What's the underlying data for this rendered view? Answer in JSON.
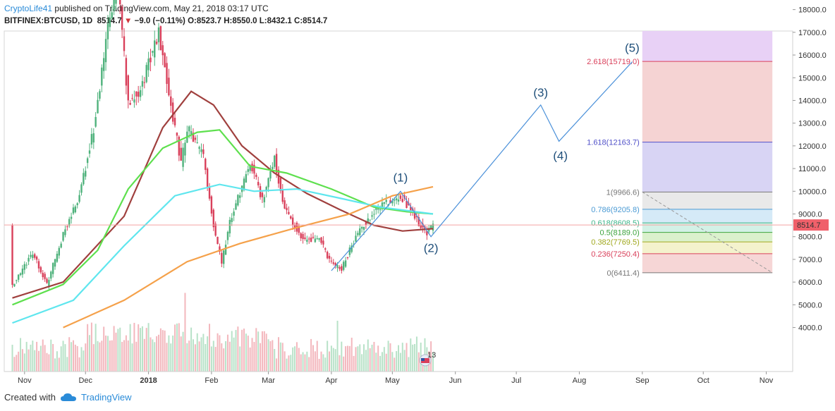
{
  "header": {
    "author": "CryptoLife41",
    "published_text": "published on TradingView.com, May 21, 2018 03:17 UTC",
    "symbol": "BITFINEX:BTCUSD, 1D",
    "last": "8514.7",
    "change": "−9.0 (−0.11%)",
    "open_label": "O:",
    "open": "8523.7",
    "high_label": "H:",
    "high": "8550.0",
    "low_label": "L:",
    "low": "8432.1",
    "close_label": "C:",
    "close": "8514.7"
  },
  "footer": {
    "created_with": "Created with",
    "brand": "TradingView"
  },
  "badge": {
    "count": "13"
  },
  "colors": {
    "up": "#4fb27c",
    "down": "#d9405b",
    "ma_brown": "#a0403e",
    "ma_green": "#5ee04e",
    "ma_cyan": "#5fe6ee",
    "ma_orange": "#f5a14a",
    "wave_line": "#4a90d9",
    "price_line": "#f4a3a3"
  },
  "chart_data": {
    "type": "candlestick",
    "price_axis": {
      "ticks": [
        "4000.0",
        "5000.0",
        "6000.0",
        "7000.0",
        "8000.0",
        "9000.0",
        "10000.0",
        "11000.0",
        "12000.0",
        "13000.0",
        "14000.0",
        "15000.0",
        "16000.0",
        "17000.0",
        "18000.0"
      ],
      "last_price": "8514.7"
    },
    "time_axis": {
      "ticks": [
        "Nov",
        "Dec",
        "2018",
        "Feb",
        "Mar",
        "Apr",
        "May",
        "Jun",
        "Jul",
        "Aug",
        "Sep",
        "Oct",
        "Nov"
      ]
    },
    "price_points": [
      [
        "2017-10-26",
        5800
      ],
      [
        "2017-11-05",
        7300
      ],
      [
        "2017-11-12",
        5900
      ],
      [
        "2017-11-20",
        8100
      ],
      [
        "2017-11-28",
        9800
      ],
      [
        "2017-12-06",
        13200
      ],
      [
        "2017-12-12",
        17200
      ],
      [
        "2017-12-17",
        19200
      ],
      [
        "2017-12-22",
        13800
      ],
      [
        "2017-12-28",
        14500
      ],
      [
        "2018-01-06",
        17000
      ],
      [
        "2018-01-12",
        13800
      ],
      [
        "2018-01-17",
        11200
      ],
      [
        "2018-01-20",
        12800
      ],
      [
        "2018-01-28",
        11500
      ],
      [
        "2018-02-02",
        8500
      ],
      [
        "2018-02-06",
        6900
      ],
      [
        "2018-02-10",
        8600
      ],
      [
        "2018-02-20",
        11300
      ],
      [
        "2018-02-26",
        9600
      ],
      [
        "2018-03-04",
        11500
      ],
      [
        "2018-03-07",
        9900
      ],
      [
        "2018-03-10",
        9100
      ],
      [
        "2018-03-18",
        7900
      ],
      [
        "2018-03-26",
        7900
      ],
      [
        "2018-04-01",
        6800
      ],
      [
        "2018-04-06",
        6600
      ],
      [
        "2018-04-13",
        8000
      ],
      [
        "2018-04-20",
        8900
      ],
      [
        "2018-04-24",
        9300
      ],
      [
        "2018-05-05",
        9800
      ],
      [
        "2018-05-09",
        9300
      ],
      [
        "2018-05-14",
        8600
      ],
      [
        "2018-05-18",
        8200
      ],
      [
        "2018-05-21",
        8514.7
      ]
    ],
    "moving_averages": [
      {
        "color": "#a0403e",
        "points": [
          [
            "2017-10-26",
            5300
          ],
          [
            "2017-11-20",
            6000
          ],
          [
            "2017-12-20",
            8900
          ],
          [
            "2018-01-08",
            12800
          ],
          [
            "2018-01-22",
            14400
          ],
          [
            "2018-02-02",
            13800
          ],
          [
            "2018-02-16",
            12000
          ],
          [
            "2018-03-04",
            10800
          ],
          [
            "2018-03-20",
            9900
          ],
          [
            "2018-04-05",
            9200
          ],
          [
            "2018-04-22",
            8500
          ],
          [
            "2018-05-06",
            8250
          ],
          [
            "2018-05-21",
            8350
          ]
        ]
      },
      {
        "color": "#5ee04e",
        "points": [
          [
            "2017-10-26",
            5000
          ],
          [
            "2017-11-20",
            5900
          ],
          [
            "2017-12-07",
            7400
          ],
          [
            "2017-12-22",
            10100
          ],
          [
            "2018-01-08",
            11900
          ],
          [
            "2018-01-25",
            12600
          ],
          [
            "2018-02-05",
            12700
          ],
          [
            "2018-02-20",
            11100
          ],
          [
            "2018-03-10",
            10800
          ],
          [
            "2018-04-01",
            10100
          ],
          [
            "2018-04-22",
            9300
          ],
          [
            "2018-05-08",
            9100
          ],
          [
            "2018-05-21",
            9000
          ]
        ]
      },
      {
        "color": "#5fe6ee",
        "points": [
          [
            "2017-10-26",
            4200
          ],
          [
            "2017-11-25",
            5200
          ],
          [
            "2017-12-20",
            7600
          ],
          [
            "2018-01-14",
            9800
          ],
          [
            "2018-02-05",
            10300
          ],
          [
            "2018-02-22",
            10000
          ],
          [
            "2018-03-15",
            10100
          ],
          [
            "2018-04-05",
            9700
          ],
          [
            "2018-04-25",
            9300
          ],
          [
            "2018-05-21",
            9000
          ]
        ]
      },
      {
        "color": "#f5a14a",
        "points": [
          [
            "2017-11-20",
            4000
          ],
          [
            "2017-12-20",
            5200
          ],
          [
            "2018-01-20",
            6900
          ],
          [
            "2018-02-15",
            7700
          ],
          [
            "2018-03-15",
            8400
          ],
          [
            "2018-04-10",
            9000
          ],
          [
            "2018-05-01",
            9800
          ],
          [
            "2018-05-21",
            10200
          ]
        ]
      }
    ],
    "elliott_waves": [
      {
        "label": "(1)",
        "date": "2018-05-05",
        "price": 10000
      },
      {
        "label": "(2)",
        "date": "2018-05-20",
        "price": 8000
      },
      {
        "label": "(3)",
        "date": "2018-07-13",
        "price": 13800
      },
      {
        "label": "(4)",
        "date": "2018-07-22",
        "price": 12200
      },
      {
        "label": "(5)",
        "date": "2018-08-27",
        "price": 15700
      }
    ],
    "wave_start": {
      "date": "2018-04-01",
      "price": 6500
    },
    "fibonacci": {
      "levels": [
        {
          "label": "2.618(15719.0)",
          "value": 15719.0,
          "color": "#d9405b"
        },
        {
          "label": "1.618(12163.7)",
          "value": 12163.7,
          "color": "#5050c8"
        },
        {
          "label": "1(9966.6)",
          "value": 9966.6,
          "color": "#777777"
        },
        {
          "label": "0.786(9205.8)",
          "value": 9205.8,
          "color": "#4a9ad4"
        },
        {
          "label": "0.618(8608.5)",
          "value": 8608.5,
          "color": "#3fb58a"
        },
        {
          "label": "0.5(8189.0)",
          "value": 8189.0,
          "color": "#3da33d"
        },
        {
          "label": "0.382(7769.5)",
          "value": 7769.5,
          "color": "#a0a81e"
        },
        {
          "label": "0.236(7250.4)",
          "value": 7250.4,
          "color": "#d9405b"
        },
        {
          "label": "0(6411.4)",
          "value": 6411.4,
          "color": "#777777"
        }
      ],
      "top_value": 18500,
      "start_date": "2018-09-01",
      "end_date": "2018-11-04"
    }
  }
}
